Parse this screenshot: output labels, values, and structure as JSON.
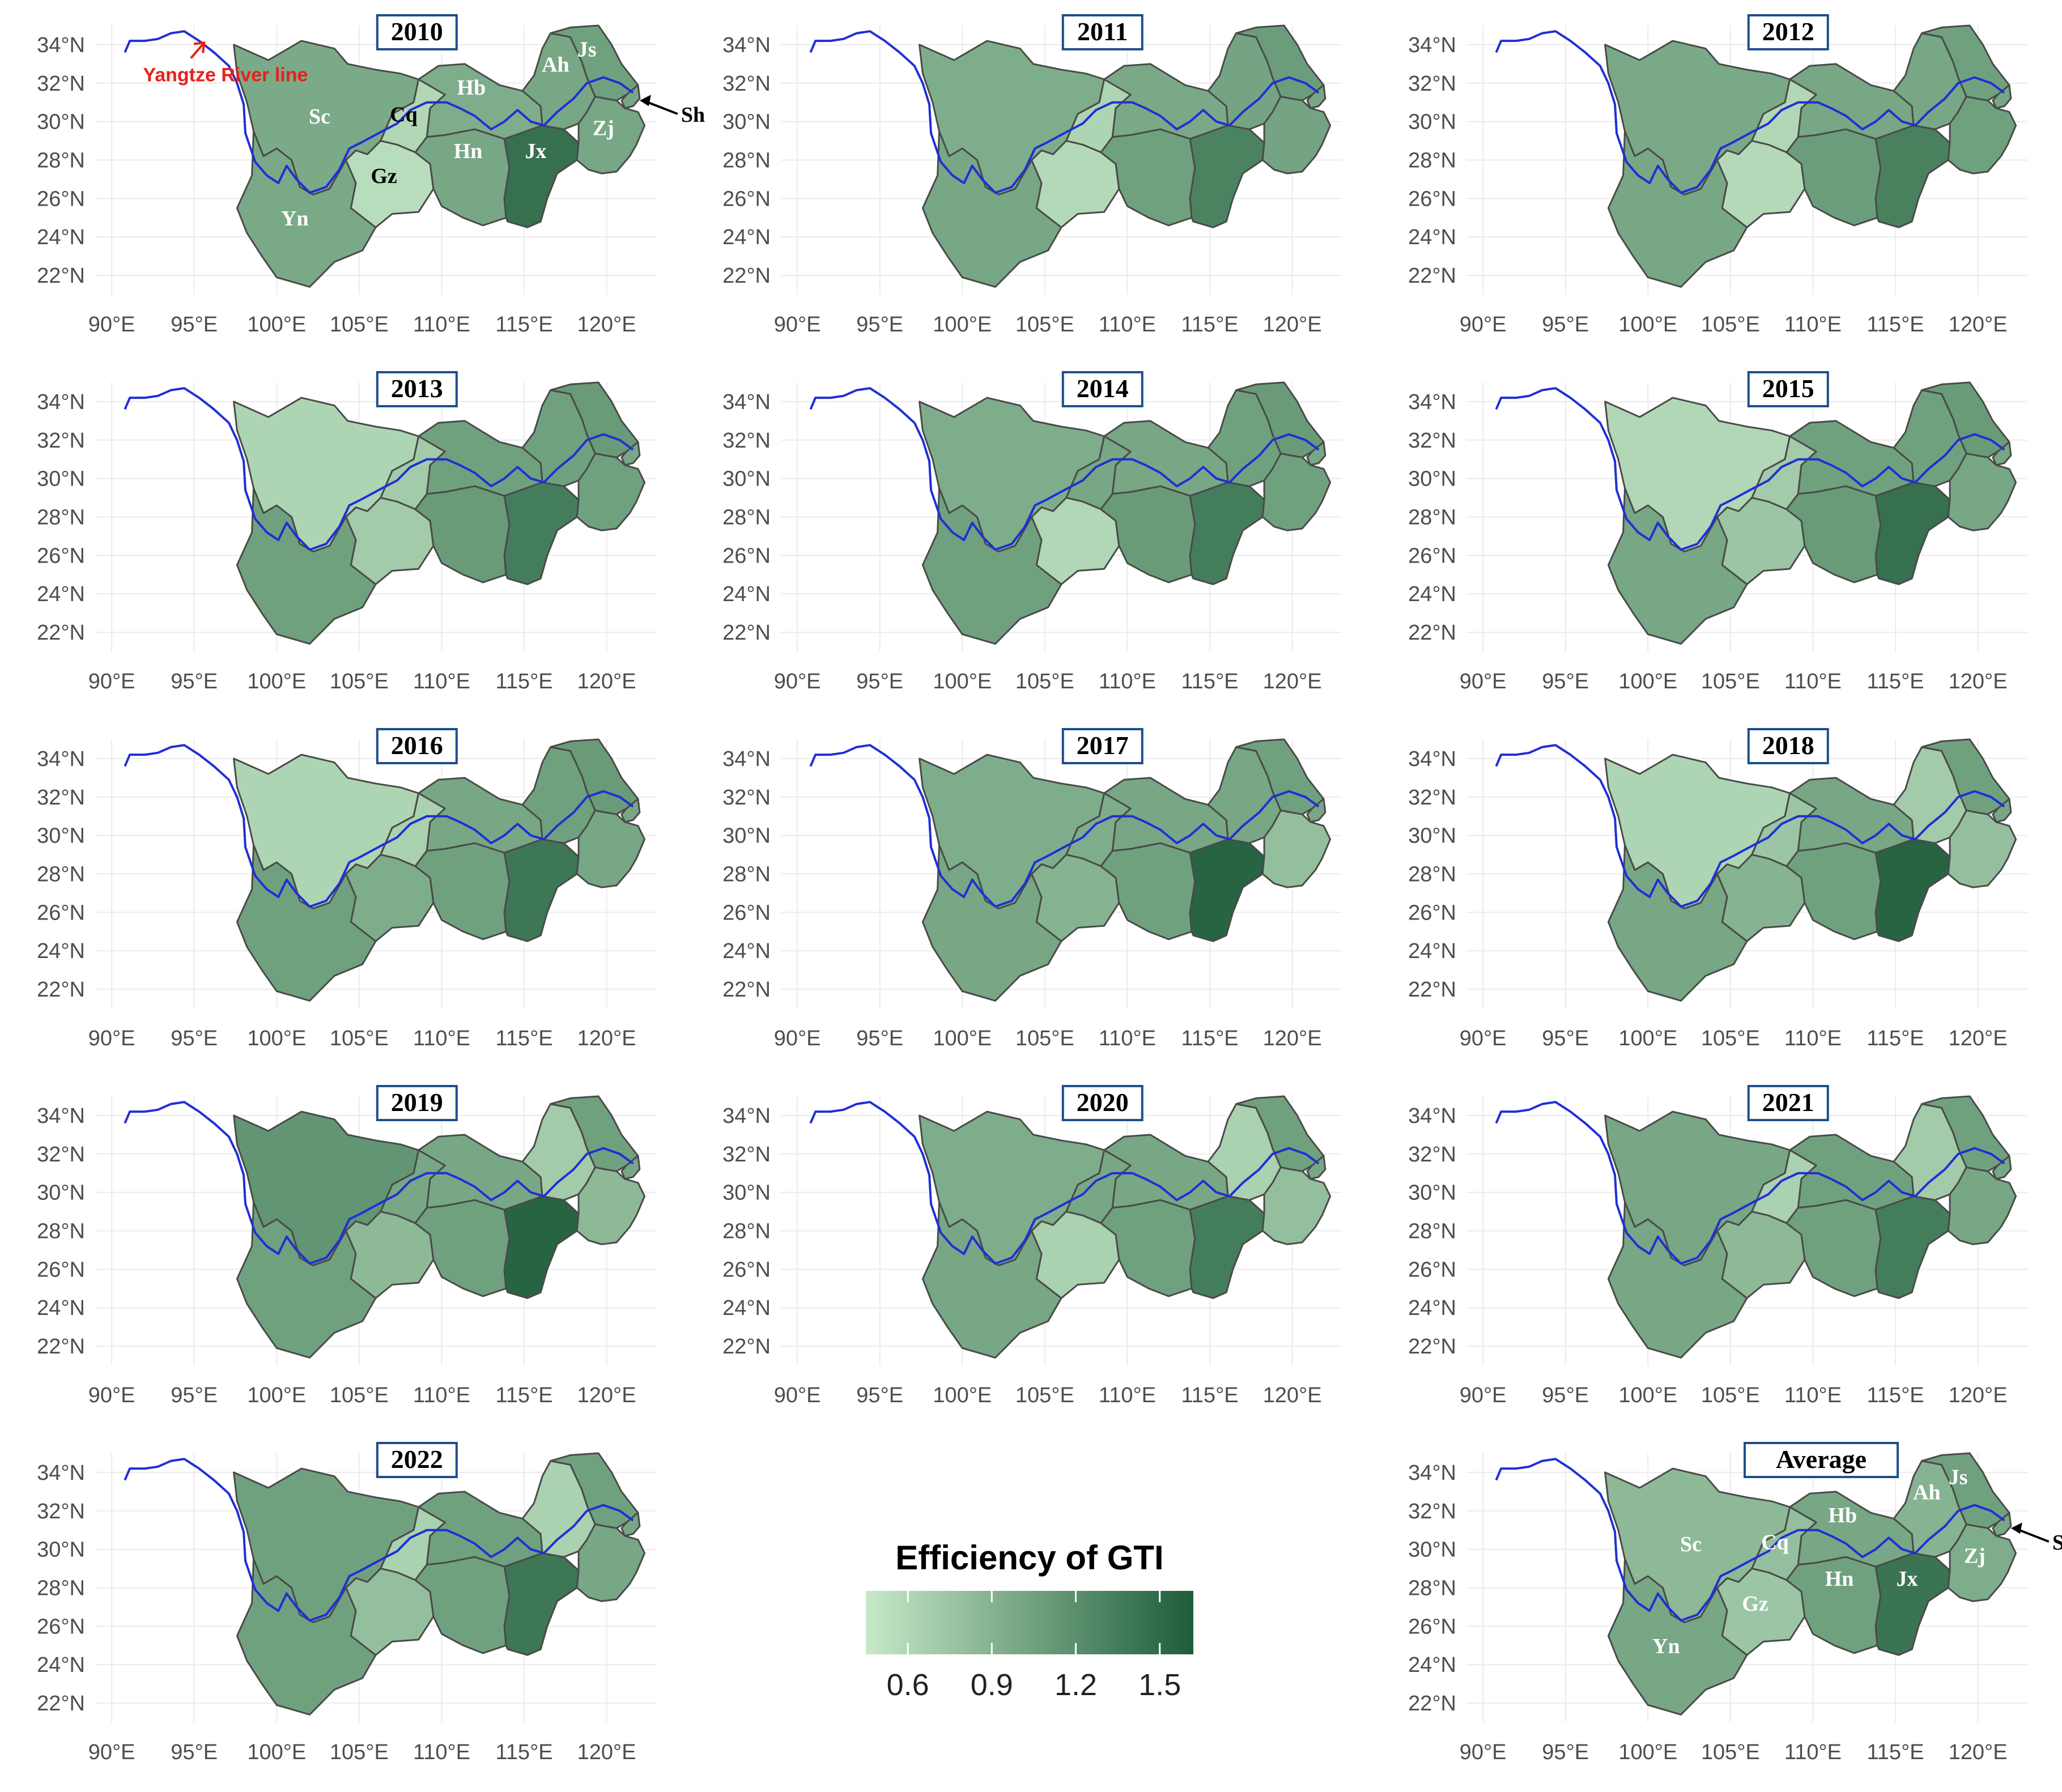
{
  "figure": {
    "type": "choropleth map small multiples",
    "river_label": "Yangtze River line",
    "colors": {
      "river": "#1f2fd6",
      "border": "#4a4a4a",
      "grid": "#ebebeb",
      "title_border": "#1f4e8c",
      "annotation_red": "#e8201a",
      "scale_low": "#c7e9c8",
      "scale_high": "#1d5c3a"
    }
  },
  "axes": {
    "x_ticks": [
      "90°E",
      "95°E",
      "100°E",
      "105°E",
      "110°E",
      "115°E",
      "120°E"
    ],
    "y_ticks": [
      "34°N",
      "32°N",
      "30°N",
      "28°N",
      "26°N",
      "24°N",
      "22°N"
    ],
    "xlim": [
      89,
      123
    ],
    "ylim": [
      21,
      35
    ]
  },
  "legend": {
    "title": "Efficiency of GTI",
    "ticks": [
      "0.6",
      "0.9",
      "1.2",
      "1.5"
    ],
    "range": [
      0.45,
      1.62
    ]
  },
  "provinces": [
    "Sc",
    "Cq",
    "Yn",
    "Gz",
    "Hb",
    "Hn",
    "Jx",
    "Ah",
    "Js",
    "Zj",
    "Sh"
  ],
  "chart_data": {
    "type": "choropleth",
    "value_label": "Efficiency of GTI",
    "panels": [
      {
        "title": "2010",
        "annotated": true,
        "values": {
          "Sc": 0.97,
          "Cq": 0.6,
          "Yn": 0.98,
          "Gz": 0.55,
          "Hb": 0.95,
          "Hn": 1.0,
          "Jx": 1.45,
          "Ah": 1.0,
          "Js": 1.05,
          "Zj": 1.0,
          "Sh": 1.0
        }
      },
      {
        "title": "2011",
        "annotated": false,
        "values": {
          "Sc": 0.95,
          "Cq": 0.62,
          "Yn": 1.0,
          "Gz": 0.58,
          "Hb": 0.98,
          "Hn": 1.05,
          "Jx": 1.3,
          "Ah": 1.02,
          "Js": 1.08,
          "Zj": 1.02,
          "Sh": 1.0
        }
      },
      {
        "title": "2012",
        "annotated": false,
        "values": {
          "Sc": 0.98,
          "Cq": 0.6,
          "Yn": 1.0,
          "Gz": 0.58,
          "Hb": 1.0,
          "Hn": 1.08,
          "Jx": 1.32,
          "Ah": 1.0,
          "Js": 1.05,
          "Zj": 1.05,
          "Sh": 1.0
        }
      },
      {
        "title": "2013",
        "annotated": false,
        "values": {
          "Sc": 0.62,
          "Cq": 0.7,
          "Yn": 1.05,
          "Gz": 0.7,
          "Hb": 1.05,
          "Hn": 1.1,
          "Jx": 1.35,
          "Ah": 1.05,
          "Js": 1.1,
          "Zj": 1.05,
          "Sh": 1.0
        }
      },
      {
        "title": "2014",
        "annotated": false,
        "values": {
          "Sc": 0.95,
          "Cq": 1.0,
          "Yn": 1.05,
          "Gz": 0.6,
          "Hb": 1.0,
          "Hn": 1.1,
          "Jx": 1.35,
          "Ah": 1.05,
          "Js": 1.1,
          "Zj": 1.05,
          "Sh": 1.0
        }
      },
      {
        "title": "2015",
        "annotated": false,
        "values": {
          "Sc": 0.6,
          "Cq": 0.7,
          "Yn": 1.0,
          "Gz": 0.75,
          "Hb": 1.05,
          "Hn": 1.1,
          "Jx": 1.45,
          "Ah": 1.05,
          "Js": 1.1,
          "Zj": 1.0,
          "Sh": 1.0
        }
      },
      {
        "title": "2016",
        "annotated": false,
        "values": {
          "Sc": 0.62,
          "Cq": 0.65,
          "Yn": 1.05,
          "Gz": 0.95,
          "Hb": 1.0,
          "Hn": 1.05,
          "Jx": 1.4,
          "Ah": 1.05,
          "Js": 1.1,
          "Zj": 1.0,
          "Sh": 1.0
        }
      },
      {
        "title": "2017",
        "annotated": false,
        "values": {
          "Sc": 0.95,
          "Cq": 0.95,
          "Yn": 1.0,
          "Gz": 0.9,
          "Hb": 1.0,
          "Hn": 1.05,
          "Jx": 1.55,
          "Ah": 1.0,
          "Js": 1.05,
          "Zj": 0.8,
          "Sh": 1.0
        }
      },
      {
        "title": "2018",
        "annotated": false,
        "values": {
          "Sc": 0.62,
          "Cq": 0.75,
          "Yn": 1.0,
          "Gz": 0.9,
          "Hb": 1.0,
          "Hn": 1.05,
          "Jx": 1.55,
          "Ah": 0.7,
          "Js": 1.05,
          "Zj": 0.8,
          "Sh": 1.0
        }
      },
      {
        "title": "2019",
        "annotated": false,
        "values": {
          "Sc": 1.15,
          "Cq": 1.0,
          "Yn": 1.05,
          "Gz": 0.85,
          "Hb": 1.0,
          "Hn": 1.05,
          "Jx": 1.55,
          "Ah": 0.7,
          "Js": 1.05,
          "Zj": 0.85,
          "Sh": 1.0
        }
      },
      {
        "title": "2020",
        "annotated": false,
        "values": {
          "Sc": 0.95,
          "Cq": 1.0,
          "Yn": 1.0,
          "Gz": 0.65,
          "Hb": 1.0,
          "Hn": 1.05,
          "Jx": 1.35,
          "Ah": 0.65,
          "Js": 1.05,
          "Zj": 0.8,
          "Sh": 1.0
        }
      },
      {
        "title": "2021",
        "annotated": false,
        "values": {
          "Sc": 1.0,
          "Cq": 0.65,
          "Yn": 1.0,
          "Gz": 0.85,
          "Hb": 1.05,
          "Hn": 1.05,
          "Jx": 1.35,
          "Ah": 0.7,
          "Js": 1.05,
          "Zj": 1.0,
          "Sh": 1.0
        }
      },
      {
        "title": "2022",
        "annotated": false,
        "values": {
          "Sc": 1.05,
          "Cq": 0.65,
          "Yn": 1.05,
          "Gz": 0.8,
          "Hb": 1.05,
          "Hn": 1.05,
          "Jx": 1.4,
          "Ah": 0.65,
          "Js": 1.05,
          "Zj": 1.0,
          "Sh": 1.0
        }
      },
      {
        "title": "Average",
        "annotated": true,
        "values": {
          "Sc": 0.85,
          "Cq": 0.8,
          "Yn": 1.0,
          "Gz": 0.75,
          "Hb": 1.0,
          "Hn": 1.05,
          "Jx": 1.42,
          "Ah": 0.9,
          "Js": 1.05,
          "Zj": 0.95,
          "Sh": 1.0
        }
      }
    ]
  }
}
